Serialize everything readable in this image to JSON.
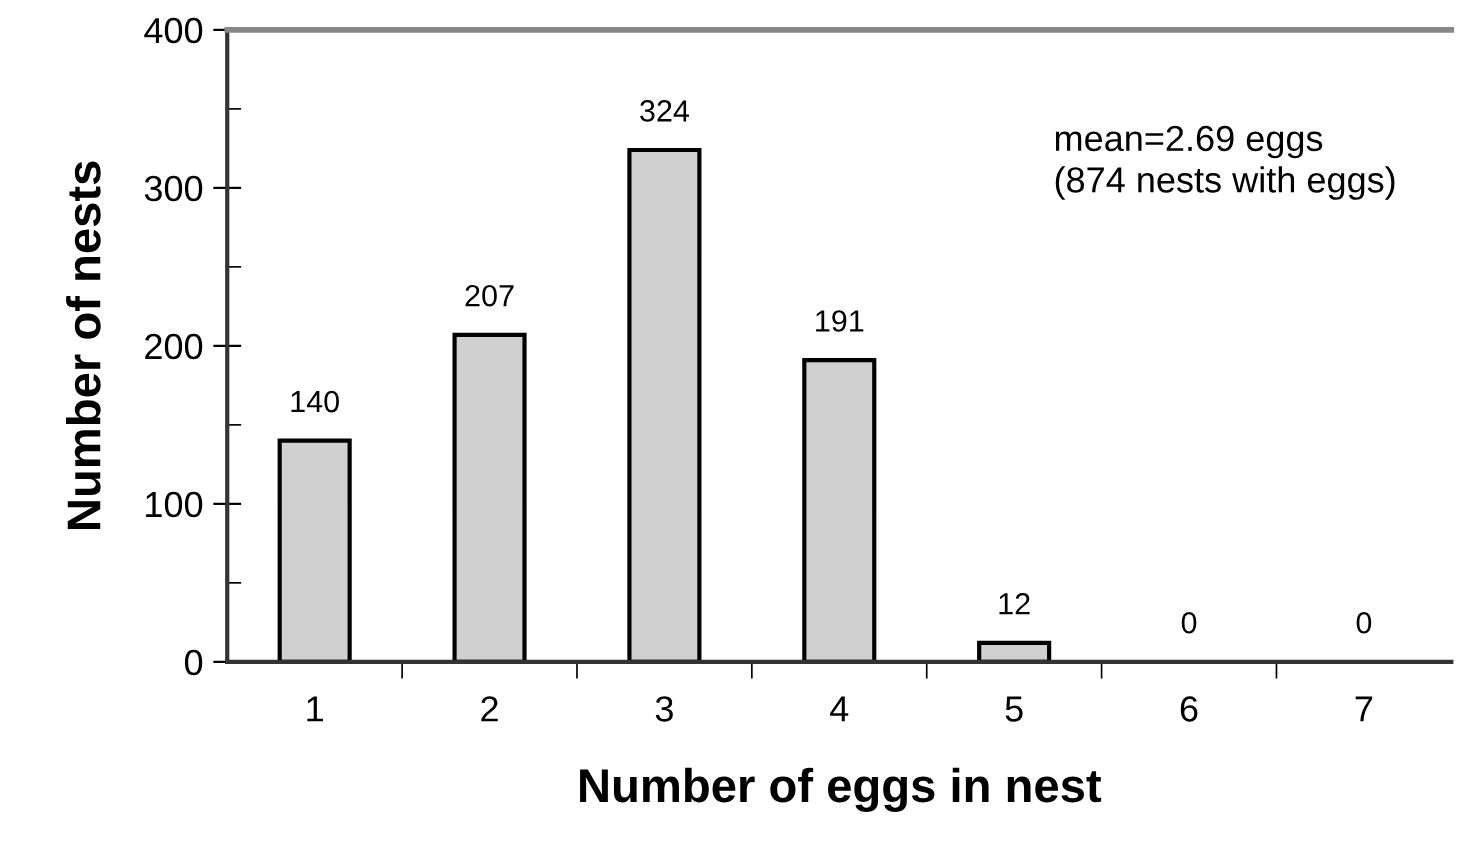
{
  "chart_data": {
    "type": "bar",
    "xlabel": "Number of eggs in nest",
    "ylabel": "Number of nests",
    "categories": [
      "1",
      "2",
      "3",
      "4",
      "5",
      "6",
      "7"
    ],
    "values": [
      140,
      207,
      324,
      191,
      12,
      0,
      0
    ],
    "color": "#d0d0d0",
    "data_labels": true,
    "ylim": [
      0,
      400
    ],
    "yticks": [
      0,
      100,
      200,
      300,
      400
    ],
    "grid": false,
    "legend": false,
    "annotations": [
      "mean=2.69 eggs\n(874 nests with eggs)"
    ]
  }
}
